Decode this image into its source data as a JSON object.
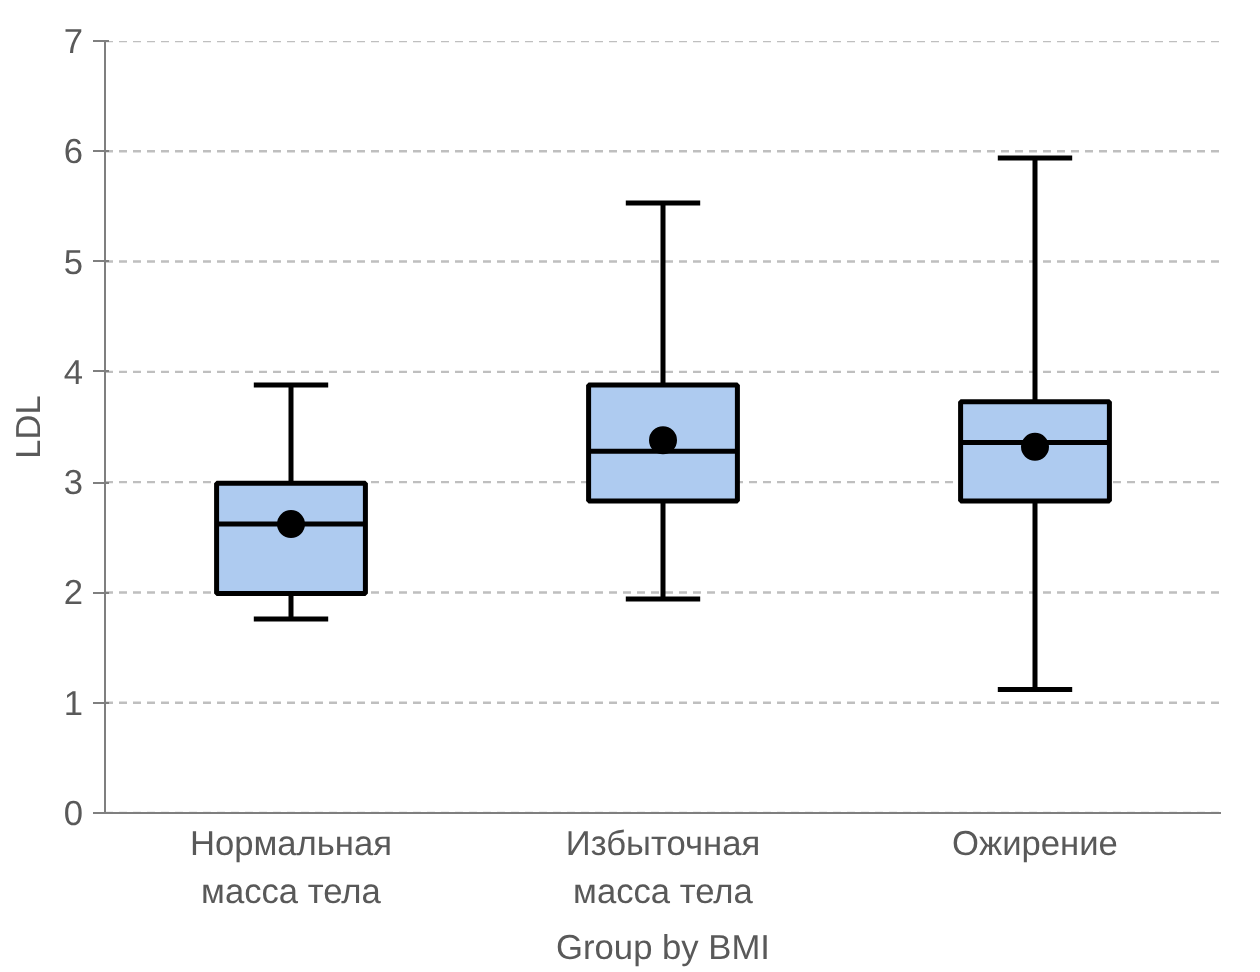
{
  "chart_data": {
    "type": "box",
    "xlabel": "Group by BMI",
    "ylabel": "LDL",
    "categories": [
      "Нормальная\nмасса тела",
      "Избыточная\nмасса тела",
      "Ожирение"
    ],
    "boxes": [
      {
        "low": 1.76,
        "q1": 1.99,
        "median": 2.62,
        "q3": 2.99,
        "high": 3.88,
        "mean": 2.62
      },
      {
        "low": 1.94,
        "q1": 2.83,
        "median": 3.28,
        "q3": 3.88,
        "high": 5.53,
        "mean": 3.38
      },
      {
        "low": 1.12,
        "q1": 2.83,
        "median": 3.36,
        "q3": 3.73,
        "high": 5.94,
        "mean": 3.32
      }
    ],
    "color": "#aecbf0",
    "ylim": [
      0,
      7
    ],
    "yticks": [
      0,
      1,
      2,
      3,
      4,
      5,
      6,
      7
    ],
    "grid": "y",
    "marker": "circle"
  }
}
